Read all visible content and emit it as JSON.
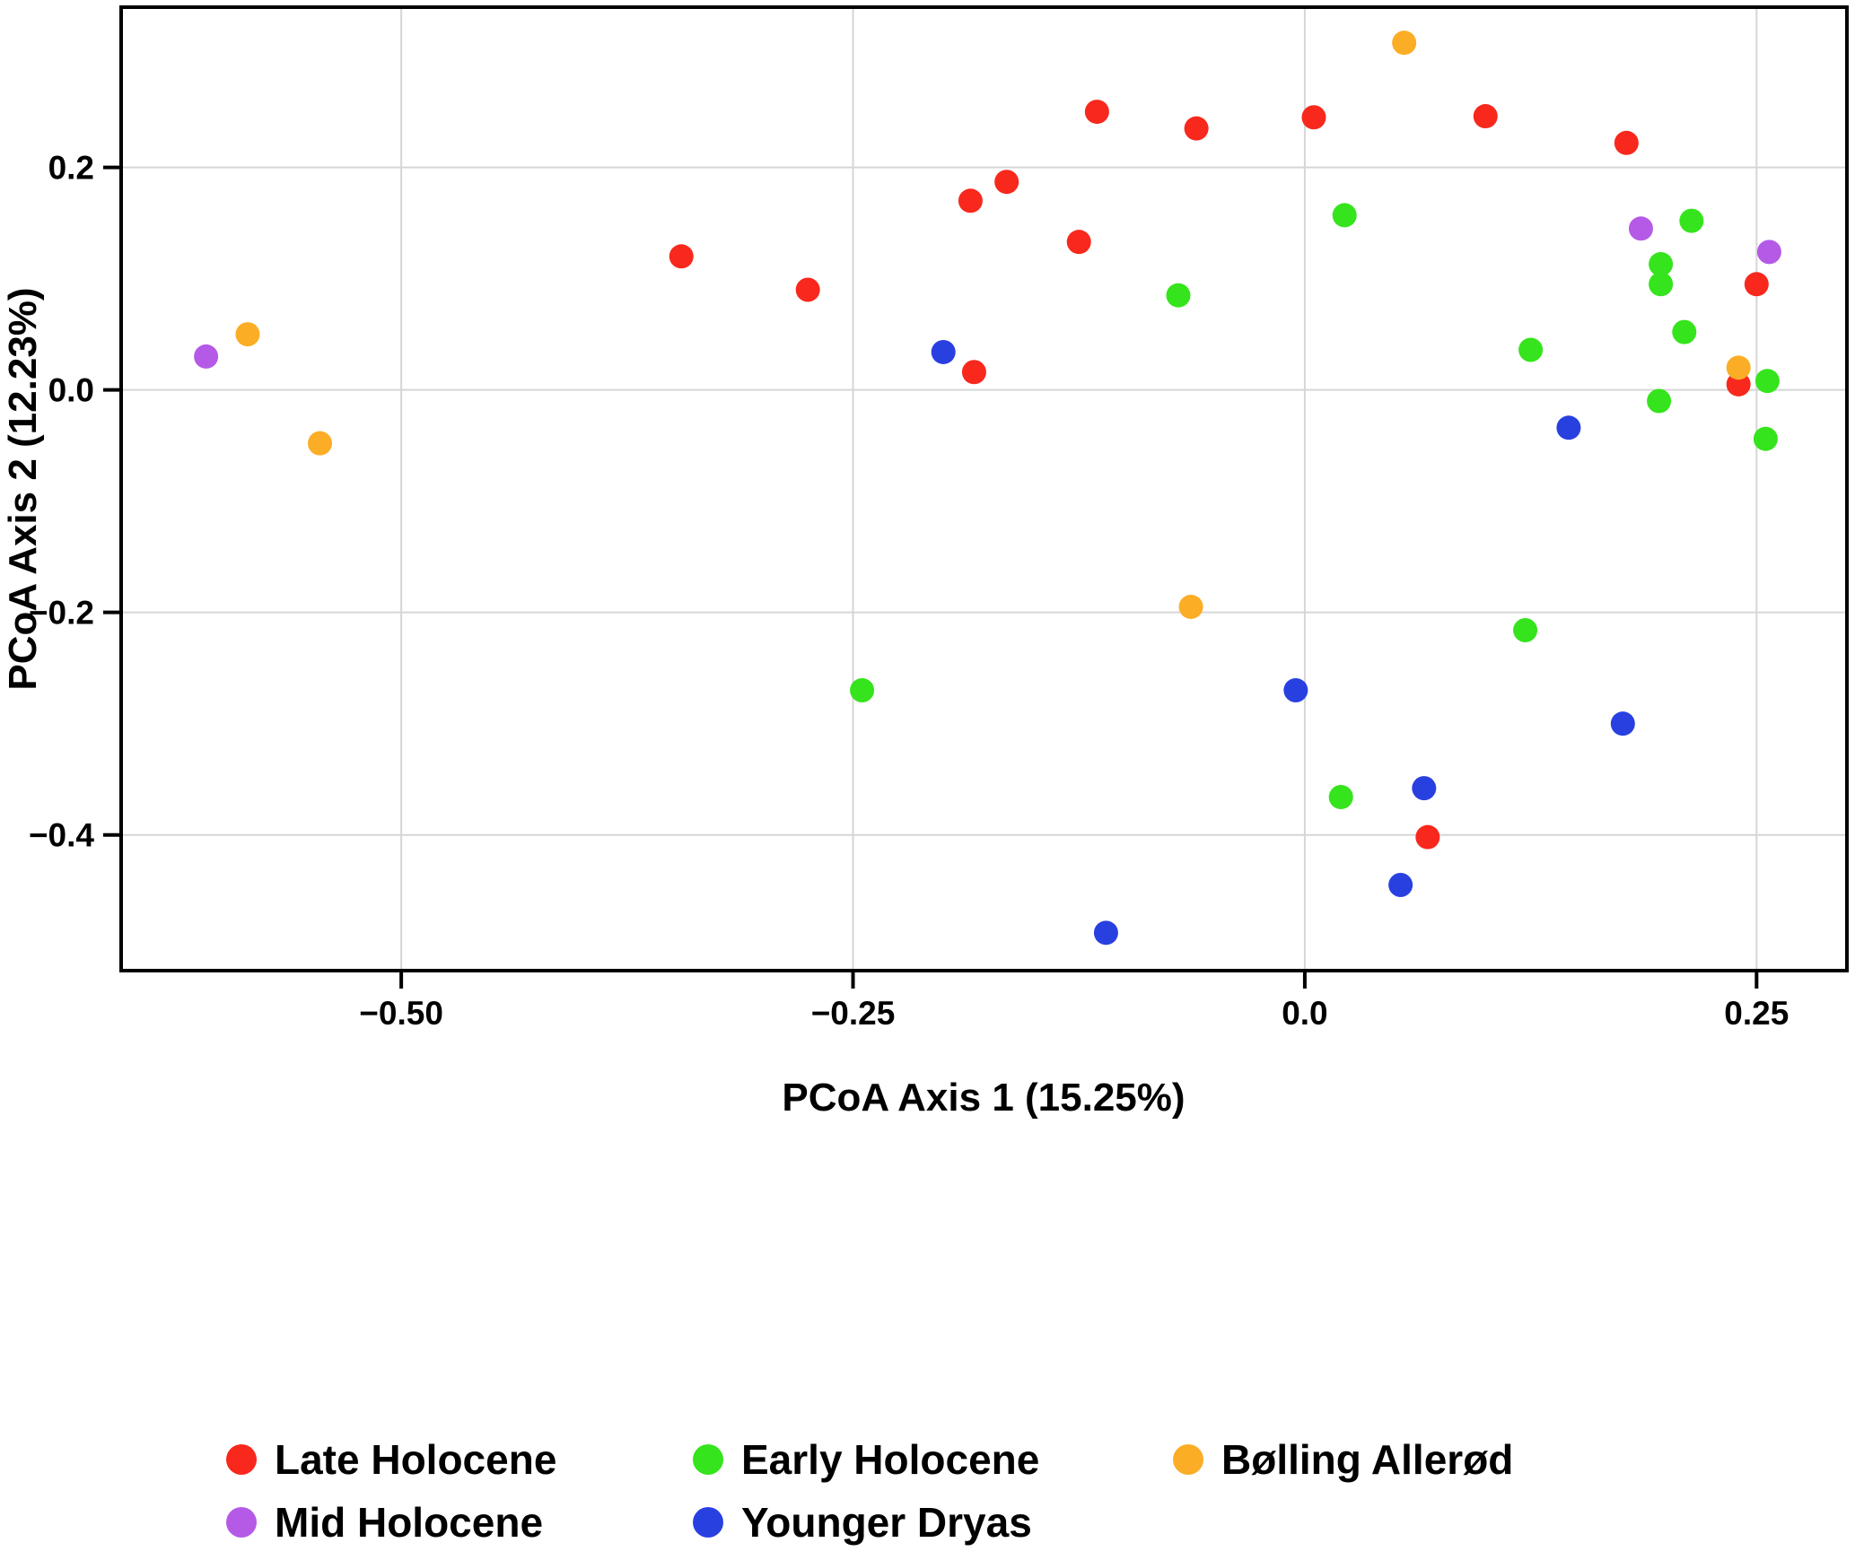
{
  "chart_data": {
    "type": "scatter",
    "title": "",
    "xlabel": "PCoA Axis 1 (15.25%)",
    "ylabel": "PCoA Axis 2 (12.23%)",
    "x_ticks": {
      "values": [
        -0.5,
        -0.25,
        0.0,
        0.25
      ],
      "labels": [
        "−0.50",
        "−0.25",
        "0.0",
        "0.25"
      ]
    },
    "y_ticks": {
      "values": [
        0.2,
        0.0,
        -0.2,
        -0.4
      ],
      "labels": [
        "0.2",
        "0.0",
        "−0.2",
        "−0.4"
      ]
    },
    "xlim": [
      -0.655,
      0.3
    ],
    "ylim": [
      -0.522,
      0.344
    ],
    "grid": true,
    "grid_color": "#D6D6D6",
    "border_color": "#000000",
    "legend_position": "bottom",
    "point_radius_px": 13.5,
    "series": [
      {
        "name": "Late Holocene",
        "color": "#F8281D",
        "points": [
          [
            -0.345,
            0.12
          ],
          [
            -0.275,
            0.09
          ],
          [
            -0.185,
            0.17
          ],
          [
            -0.165,
            0.187
          ],
          [
            -0.115,
            0.25
          ],
          [
            -0.125,
            0.133
          ],
          [
            -0.06,
            0.235
          ],
          [
            0.005,
            0.245
          ],
          [
            0.1,
            0.246
          ],
          [
            0.178,
            0.222
          ],
          [
            -0.183,
            0.016
          ],
          [
            0.24,
            0.005
          ],
          [
            0.25,
            0.095
          ],
          [
            0.068,
            -0.402
          ]
        ]
      },
      {
        "name": "Mid Holocene",
        "color": "#B55AE6",
        "points": [
          [
            -0.608,
            0.03
          ],
          [
            0.186,
            0.145
          ],
          [
            0.257,
            0.124
          ]
        ]
      },
      {
        "name": "Early Holocene",
        "color": "#35E41C",
        "points": [
          [
            0.022,
            0.157
          ],
          [
            0.214,
            0.152
          ],
          [
            0.197,
            0.113
          ],
          [
            0.197,
            0.095
          ],
          [
            0.21,
            0.052
          ],
          [
            0.125,
            0.036
          ],
          [
            -0.07,
            0.085
          ],
          [
            0.196,
            -0.01
          ],
          [
            0.256,
            0.008
          ],
          [
            0.255,
            -0.044
          ],
          [
            0.122,
            -0.216
          ],
          [
            -0.245,
            -0.27
          ],
          [
            0.02,
            -0.366
          ]
        ]
      },
      {
        "name": "Younger Dryas",
        "color": "#2940E1",
        "points": [
          [
            -0.2,
            0.034
          ],
          [
            0.146,
            -0.034
          ],
          [
            -0.005,
            -0.27
          ],
          [
            0.176,
            -0.3
          ],
          [
            0.066,
            -0.358
          ],
          [
            0.053,
            -0.445
          ],
          [
            -0.11,
            -0.488
          ]
        ]
      },
      {
        "name": "Bølling Allerød",
        "color": "#FBAD26",
        "points": [
          [
            -0.585,
            0.05
          ],
          [
            -0.545,
            -0.048
          ],
          [
            0.055,
            0.312
          ],
          [
            -0.063,
            -0.195
          ],
          [
            0.24,
            0.02
          ]
        ]
      }
    ]
  },
  "legend": {
    "items": [
      {
        "label": "Late Holocene",
        "color": "#F8281D"
      },
      {
        "label": "Early Holocene",
        "color": "#35E41C"
      },
      {
        "label": "Bølling Allerød",
        "color": "#FBAD26"
      },
      {
        "label": "Mid Holocene",
        "color": "#B55AE6"
      },
      {
        "label": "Younger Dryas",
        "color": "#2940E1"
      }
    ]
  }
}
